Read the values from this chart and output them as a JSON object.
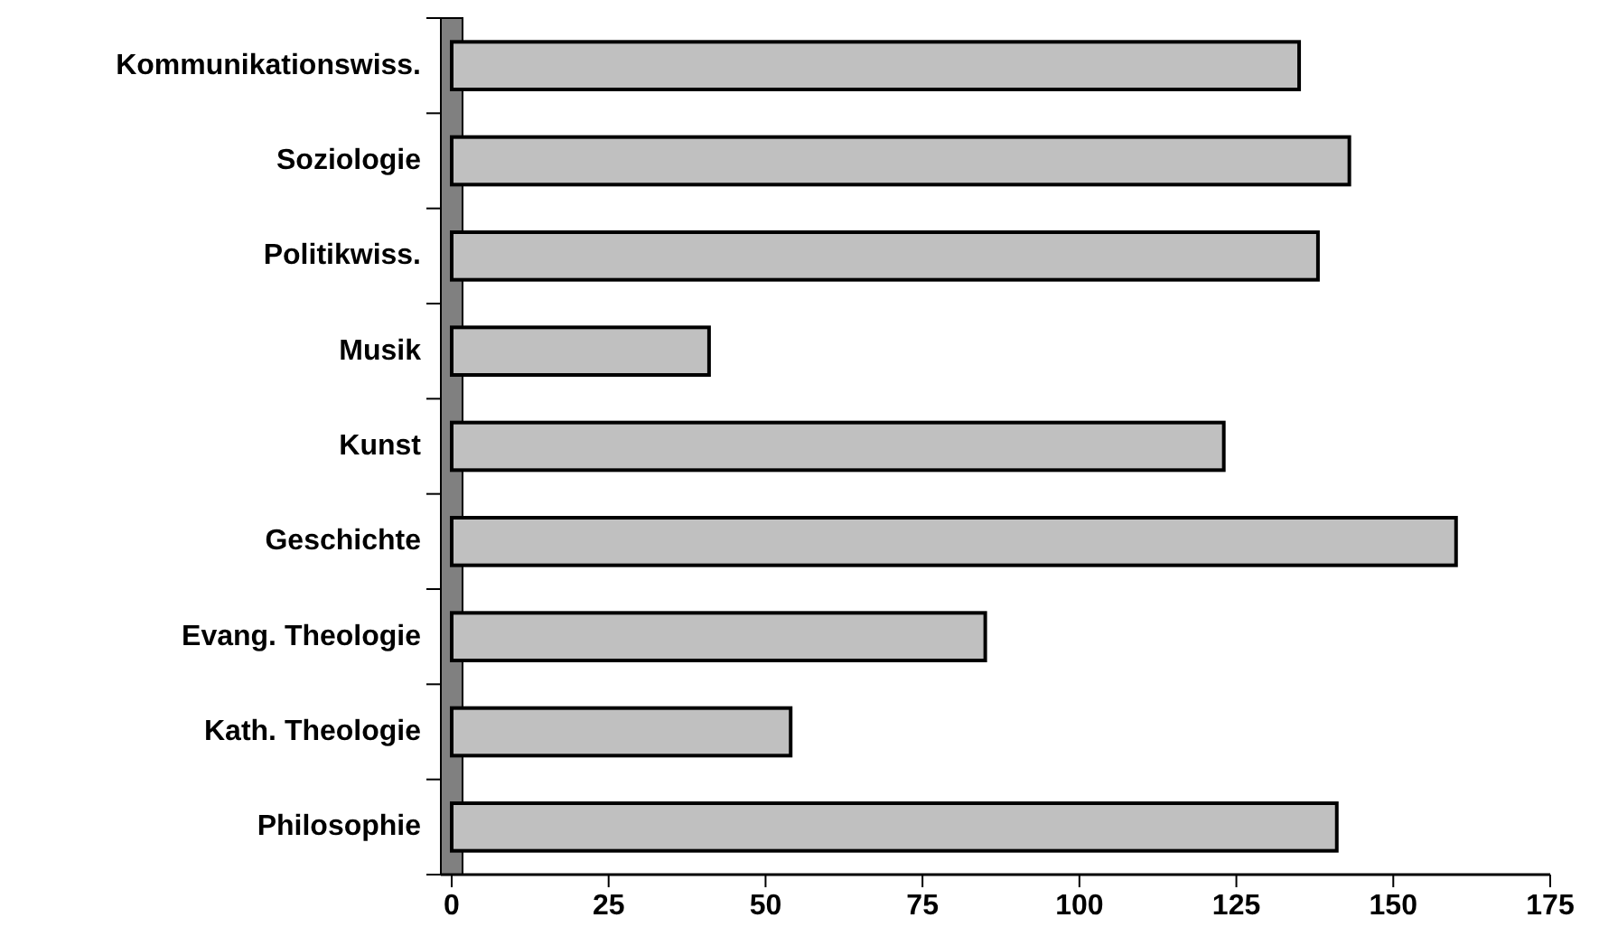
{
  "chart_data": {
    "type": "bar",
    "orientation": "horizontal",
    "categories": [
      "Kommunikationswiss.",
      "Soziologie",
      "Politikwiss.",
      "Musik",
      "Kunst",
      "Geschichte",
      "Evang. Theologie",
      "Kath. Theologie",
      "Philosophie"
    ],
    "values": [
      135,
      143,
      138,
      41,
      123,
      160,
      85,
      54,
      141
    ],
    "color": "#c0c0c0",
    "xlim": [
      0,
      175
    ],
    "xticks": [
      0,
      25,
      50,
      75,
      100,
      125,
      150,
      175
    ],
    "grid": false
  }
}
